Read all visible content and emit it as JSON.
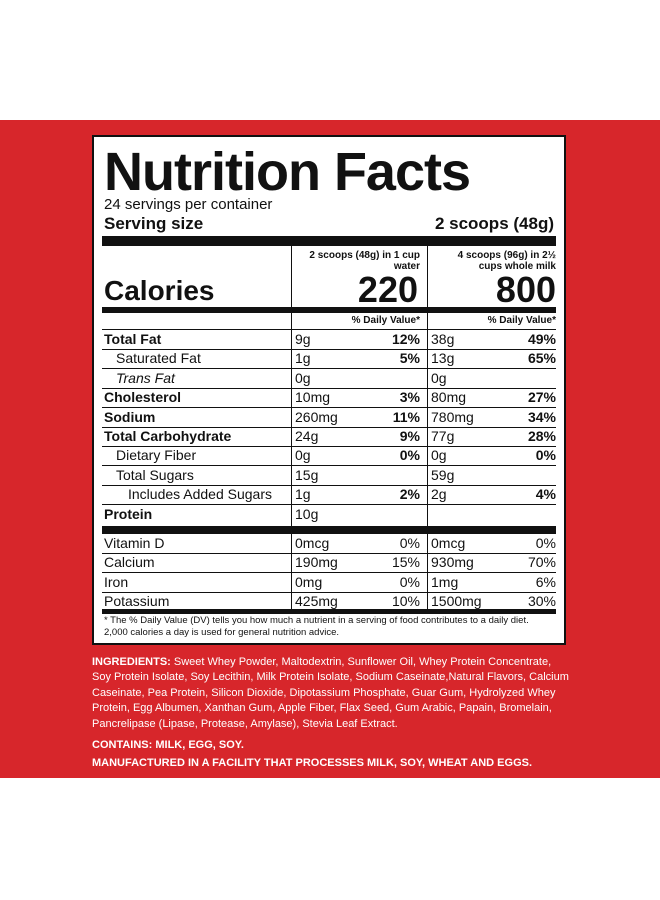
{
  "title": "Nutrition Facts",
  "servings_per_container": "24 servings per container",
  "serving_size_label": "Serving size",
  "serving_size_value": "2 scoops (48g)",
  "column_1_header": "2 scoops (48g) in 1 cup water",
  "column_2_header": "4 scoops (96g) in 2½ cups whole milk",
  "calories_label": "Calories",
  "calories_1": "220",
  "calories_2": "800",
  "dv_header": "% Daily Value*",
  "nutrients": [
    {
      "name": "Total Fat",
      "amt1": "9g",
      "dv1": "12%",
      "amt2": "38g",
      "dv2": "49%"
    },
    {
      "name": "Saturated Fat",
      "amt1": "1g",
      "dv1": "5%",
      "amt2": "13g",
      "dv2": "65%"
    },
    {
      "name": "Trans Fat",
      "amt1": "0g",
      "dv1": "",
      "amt2": "0g",
      "dv2": ""
    },
    {
      "name": "Cholesterol",
      "amt1": "10mg",
      "dv1": "3%",
      "amt2": "80mg",
      "dv2": "27%"
    },
    {
      "name": "Sodium",
      "amt1": "260mg",
      "dv1": "11%",
      "amt2": "780mg",
      "dv2": "34%"
    },
    {
      "name": "Total Carbohydrate",
      "amt1": "24g",
      "dv1": "9%",
      "amt2": "77g",
      "dv2": "28%"
    },
    {
      "name": "Dietary Fiber",
      "amt1": "0g",
      "dv1": "0%",
      "amt2": "0g",
      "dv2": "0%"
    },
    {
      "name": "Total Sugars",
      "amt1": "15g",
      "dv1": "",
      "amt2": "59g",
      "dv2": ""
    },
    {
      "name": "Includes Added Sugars",
      "amt1": "1g",
      "dv1": "2%",
      "amt2": "2g",
      "dv2": "4%"
    },
    {
      "name": "Protein",
      "amt1": "10g",
      "dv1": "",
      "amt2": "",
      "dv2": ""
    }
  ],
  "vitamins": [
    {
      "name": "Vitamin D",
      "amt1": "0mcg",
      "dv1": "0%",
      "amt2": "0mcg",
      "dv2": "0%"
    },
    {
      "name": "Calcium",
      "amt1": "190mg",
      "dv1": "15%",
      "amt2": "930mg",
      "dv2": "70%"
    },
    {
      "name": "Iron",
      "amt1": "0mg",
      "dv1": "0%",
      "amt2": "1mg",
      "dv2": "6%"
    },
    {
      "name": "Potassium",
      "amt1": "425mg",
      "dv1": "10%",
      "amt2": "1500mg",
      "dv2": "30%"
    }
  ],
  "footnote": "* The % Daily Value (DV) tells you how much a nutrient in a serving of food contributes to a daily diet. 2,000 calories a day is used for general nutrition advice.",
  "ingredients_label": "INGREDIENTS:",
  "ingredients_text": "Sweet Whey Powder, Maltodextrin, Sunflower Oil, Whey Protein Concentrate, Soy Protein Isolate, Soy Lecithin, Milk Protein Isolate, Sodium Caseinate,Natural Flavors, Calcium Caseinate, Pea Protein, Silicon Dioxide, Dipotassium Phosphate, Guar Gum, Hydrolyzed Whey Protein, Egg Albumen, Xanthan Gum, Apple Fiber, Flax Seed, Gum Arabic, Papain, Bromelain, Pancrelipase (Lipase, Protease, Amylase), Stevia Leaf Extract.",
  "contains": "CONTAINS: MILK, EGG, SOY.",
  "manufactured": "MANUFACTURED IN A FACILITY THAT PROCESSES MILK, SOY, WHEAT AND EGGS.",
  "colors": {
    "background_red": "#d7262b",
    "panel": "#ffffff",
    "ink": "#111111"
  }
}
